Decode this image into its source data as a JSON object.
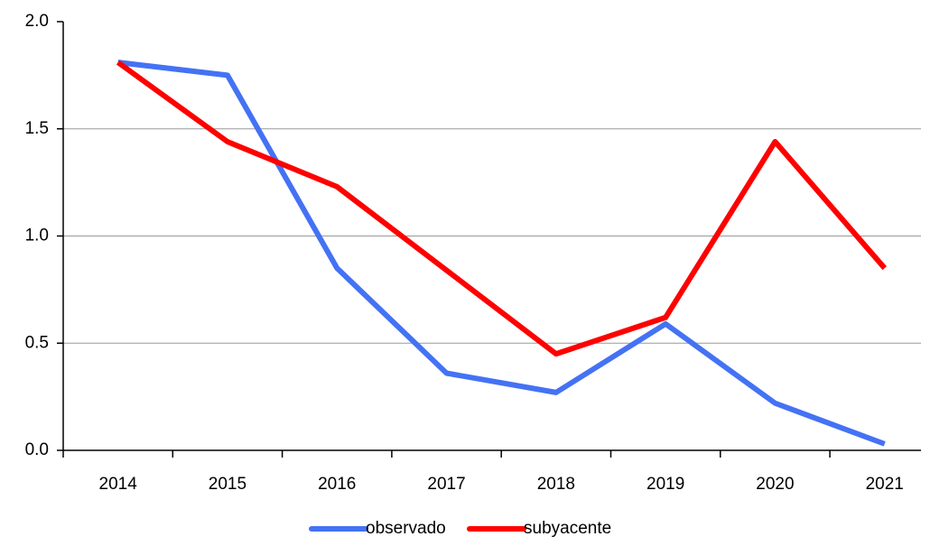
{
  "chart_data": {
    "type": "line",
    "categories": [
      "2014",
      "2015",
      "2016",
      "2017",
      "2018",
      "2019",
      "2020",
      "2021"
    ],
    "series": [
      {
        "name": "observado",
        "color": "#4472f4",
        "values": [
          1.81,
          1.75,
          0.85,
          0.36,
          0.27,
          0.59,
          0.22,
          0.03
        ]
      },
      {
        "name": "subyacente",
        "color": "#ff0000",
        "values": [
          1.81,
          1.44,
          1.23,
          0.84,
          0.45,
          0.62,
          1.44,
          0.85
        ]
      }
    ],
    "ylim": [
      0,
      2
    ],
    "yticks": [
      {
        "value": 0,
        "label": "0.0"
      },
      0.5,
      {
        "value": 1,
        "label": "1.0"
      },
      1.5,
      {
        "value": 2,
        "label": "2.0"
      }
    ],
    "grid": true,
    "legend": "bottom"
  }
}
